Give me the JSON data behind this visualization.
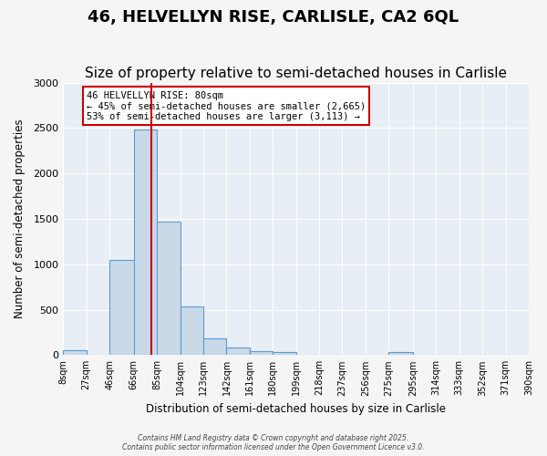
{
  "title": "46, HELVELLYN RISE, CARLISLE, CA2 6QL",
  "subtitle": "Size of property relative to semi-detached houses in Carlisle",
  "xlabel": "Distribution of semi-detached houses by size in Carlisle",
  "ylabel": "Number of semi-detached properties",
  "bin_labels": [
    "8sqm",
    "27sqm",
    "46sqm",
    "66sqm",
    "85sqm",
    "104sqm",
    "123sqm",
    "142sqm",
    "161sqm",
    "180sqm",
    "199sqm",
    "218sqm",
    "237sqm",
    "256sqm",
    "275sqm",
    "295sqm",
    "314sqm",
    "333sqm",
    "352sqm",
    "371sqm",
    "390sqm"
  ],
  "bin_edges": [
    8,
    27,
    46,
    66,
    85,
    104,
    123,
    142,
    161,
    180,
    199,
    218,
    237,
    256,
    275,
    295,
    314,
    333,
    352,
    371,
    390
  ],
  "bar_heights": [
    50,
    0,
    1050,
    2480,
    1470,
    540,
    185,
    85,
    40,
    35,
    0,
    0,
    0,
    0,
    35,
    0,
    0,
    0,
    0,
    0
  ],
  "bar_color": "#c9d9e8",
  "bar_edge_color": "#5b9bd5",
  "property_size": 80,
  "red_line_color": "#cc0000",
  "annotation_text": "46 HELVELLYN RISE: 80sqm\n← 45% of semi-detached houses are smaller (2,665)\n53% of semi-detached houses are larger (3,113) →",
  "annotation_box_color": "#ffffff",
  "annotation_box_edge": "#cc0000",
  "ylim": [
    0,
    3000
  ],
  "background_color": "#e8eef5",
  "footer_line1": "Contains HM Land Registry data © Crown copyright and database right 2025.",
  "footer_line2": "Contains public sector information licensed under the Open Government Licence v3.0.",
  "title_fontsize": 13,
  "subtitle_fontsize": 11
}
